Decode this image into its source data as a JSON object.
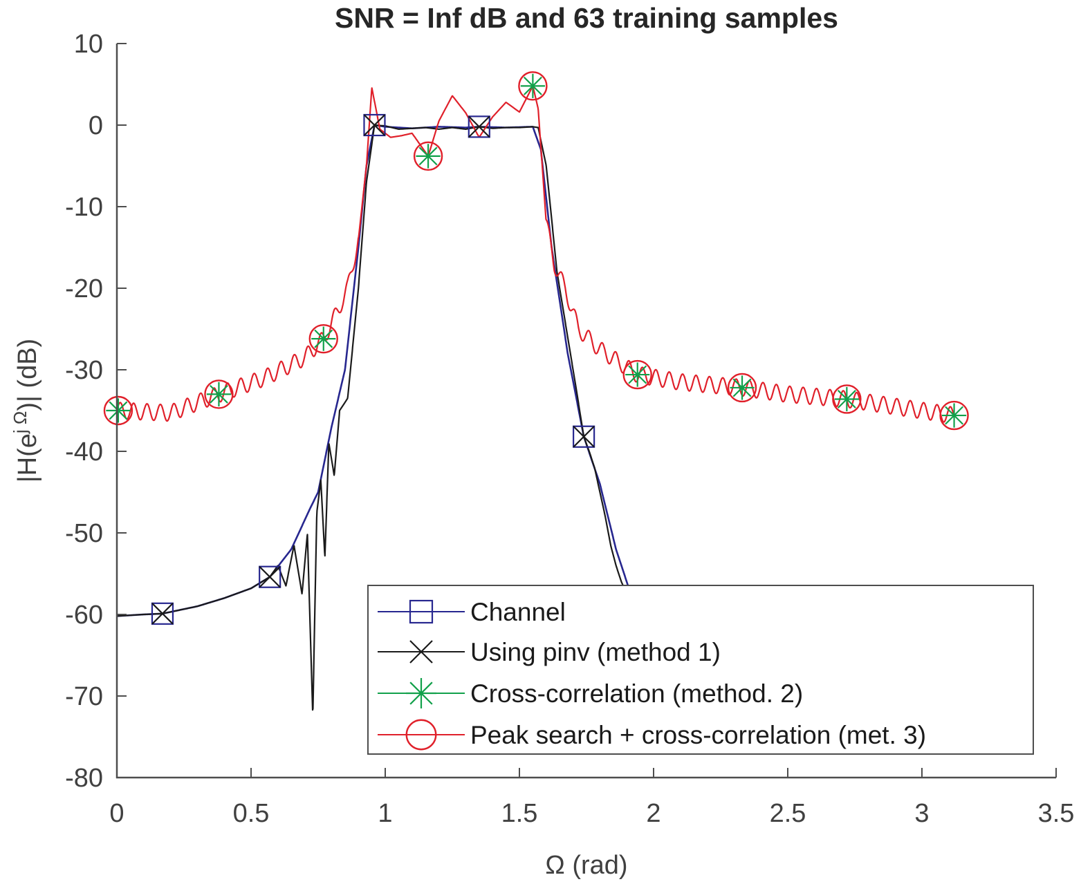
{
  "chart_data": {
    "type": "line",
    "title": "SNR = Inf dB and 63 training samples",
    "xlabel": "Ω (rad)",
    "ylabel": "|H(e^{j Ω})| (dB)",
    "ylabel_parts": {
      "pre": "|H(e",
      "sup": "j Ω",
      "post": ")| (dB)"
    },
    "xlim": [
      0,
      3.5
    ],
    "ylim": [
      -80,
      10
    ],
    "xticks": [
      0,
      0.5,
      1,
      1.5,
      2,
      2.5,
      3,
      3.5
    ],
    "xtick_labels": [
      "0",
      "0.5",
      "1",
      "1.5",
      "2",
      "2.5",
      "3",
      "3.5"
    ],
    "yticks": [
      10,
      0,
      -10,
      -20,
      -30,
      -40,
      -50,
      -60,
      -70,
      -80
    ],
    "ytick_labels": [
      "10",
      "0",
      "-10",
      "-20",
      "-30",
      "-40",
      "-50",
      "-60",
      "-70",
      "-80"
    ],
    "grid": false,
    "legend_position": "bottom-right",
    "series": [
      {
        "name": "Channel",
        "color": "#27278f",
        "marker": "square",
        "x": [
          0.0,
          0.1,
          0.17,
          0.3,
          0.4,
          0.5,
          0.57,
          0.65,
          0.72,
          0.75,
          0.8,
          0.85,
          0.9,
          0.93,
          0.96,
          1.0,
          1.1,
          1.2,
          1.3,
          1.35,
          1.45,
          1.55,
          1.58,
          1.62,
          1.68,
          1.74,
          1.8,
          1.86,
          1.92,
          1.98,
          2.05
        ],
        "y": [
          -60.2,
          -60.0,
          -59.9,
          -59.0,
          -58.0,
          -56.8,
          -55.4,
          -52.0,
          -47.0,
          -45.0,
          -37.0,
          -30.0,
          -15.0,
          -5.0,
          0.0,
          -0.2,
          -0.4,
          -0.2,
          -0.3,
          -0.2,
          -0.3,
          -0.2,
          -3.0,
          -15.0,
          -28.0,
          -38.2,
          -44.0,
          -52.0,
          -58.0,
          -62.0,
          -62.0
        ],
        "marker_x": [
          0.17,
          0.57,
          0.96,
          1.35,
          1.74
        ],
        "marker_y": [
          -59.9,
          -55.4,
          0.0,
          -0.2,
          -38.2
        ]
      },
      {
        "name": "Using pinv (method 1)",
        "color": "#1a1a1a",
        "marker": "x",
        "x": [
          0.0,
          0.1,
          0.17,
          0.3,
          0.4,
          0.5,
          0.57,
          0.6,
          0.63,
          0.66,
          0.69,
          0.71,
          0.73,
          0.745,
          0.76,
          0.775,
          0.79,
          0.81,
          0.83,
          0.86,
          0.9,
          0.93,
          0.96,
          1.0,
          1.05,
          1.1,
          1.15,
          1.2,
          1.25,
          1.3,
          1.35,
          1.4,
          1.45,
          1.5,
          1.55,
          1.57,
          1.6,
          1.64,
          1.68,
          1.71,
          1.74,
          1.76,
          1.78,
          1.8,
          1.82,
          1.84,
          1.86,
          1.88,
          1.9,
          1.92,
          1.94,
          1.96,
          1.98,
          2.0,
          2.02,
          2.04
        ],
        "y": [
          -60.2,
          -60.0,
          -59.9,
          -59.0,
          -58.0,
          -56.8,
          -55.4,
          -54.0,
          -56.5,
          -51.5,
          -57.5,
          -50.0,
          -72.5,
          -47.5,
          -43.5,
          -53.0,
          -39.0,
          -43.0,
          -35.0,
          -33.5,
          -20.0,
          -7.0,
          0.0,
          -0.1,
          -0.5,
          -0.4,
          -0.3,
          -0.5,
          -0.3,
          -0.5,
          -0.2,
          -0.4,
          -0.3,
          -0.3,
          -0.2,
          -0.3,
          -5.0,
          -18.0,
          -26.0,
          -32.0,
          -38.2,
          -40.0,
          -42.0,
          -45.0,
          -48.0,
          -51.5,
          -54.0,
          -56.0,
          -57.5,
          -59.0,
          -60.5,
          -61.5,
          -62.5,
          -63.5,
          -64.5,
          -65.0
        ],
        "marker_x": [
          0.17,
          0.57,
          0.96,
          1.35,
          1.74
        ],
        "marker_y": [
          -59.9,
          -55.4,
          0.0,
          -0.2,
          -38.2
        ]
      },
      {
        "name": "Cross-correlation (method. 2)",
        "color": "#11a04a",
        "marker": "asterisk",
        "marker_x": [
          0.005,
          0.38,
          0.77,
          1.16,
          1.55,
          1.94,
          2.33,
          2.72,
          3.12
        ],
        "marker_y": [
          -35.0,
          -33.0,
          -26.2,
          -3.8,
          4.8,
          -30.6,
          -32.2,
          -33.6,
          -35.6
        ]
      },
      {
        "name": "Peak search + cross-correlation (met. 3)",
        "color": "#e0202a",
        "marker": "circle",
        "x": [
          0.0,
          0.2,
          0.38,
          0.55,
          0.7,
          0.77,
          0.82,
          0.86,
          0.9,
          0.93,
          0.95,
          0.98,
          1.02,
          1.06,
          1.1,
          1.16,
          1.2,
          1.25,
          1.3,
          1.35,
          1.4,
          1.45,
          1.5,
          1.55,
          1.57,
          1.6,
          1.63,
          1.67,
          1.72,
          1.8,
          1.94,
          2.1,
          2.33,
          2.5,
          2.72,
          2.9,
          3.12
        ],
        "y": [
          -35.0,
          -35.3,
          -33.0,
          -31.0,
          -28.5,
          -26.2,
          -23.0,
          -20.0,
          -14.0,
          -5.0,
          4.6,
          -0.5,
          -1.5,
          -1.3,
          -1.0,
          -3.8,
          0.5,
          3.6,
          1.5,
          -1.5,
          1.0,
          2.8,
          1.6,
          4.8,
          2.0,
          -12.0,
          -17.0,
          -20.0,
          -25.0,
          -27.5,
          -30.6,
          -31.5,
          -32.2,
          -33.0,
          -33.6,
          -34.5,
          -35.6
        ],
        "ripple_db": 1.0,
        "marker_x": [
          0.005,
          0.38,
          0.77,
          1.16,
          1.55,
          1.94,
          2.33,
          2.72,
          3.12
        ],
        "marker_y": [
          -35.0,
          -33.0,
          -26.2,
          -3.8,
          4.8,
          -30.6,
          -32.2,
          -33.6,
          -35.6
        ]
      }
    ]
  },
  "colors": {
    "axis": "#4d4d4d",
    "legend_border": "#4d4d4d"
  }
}
